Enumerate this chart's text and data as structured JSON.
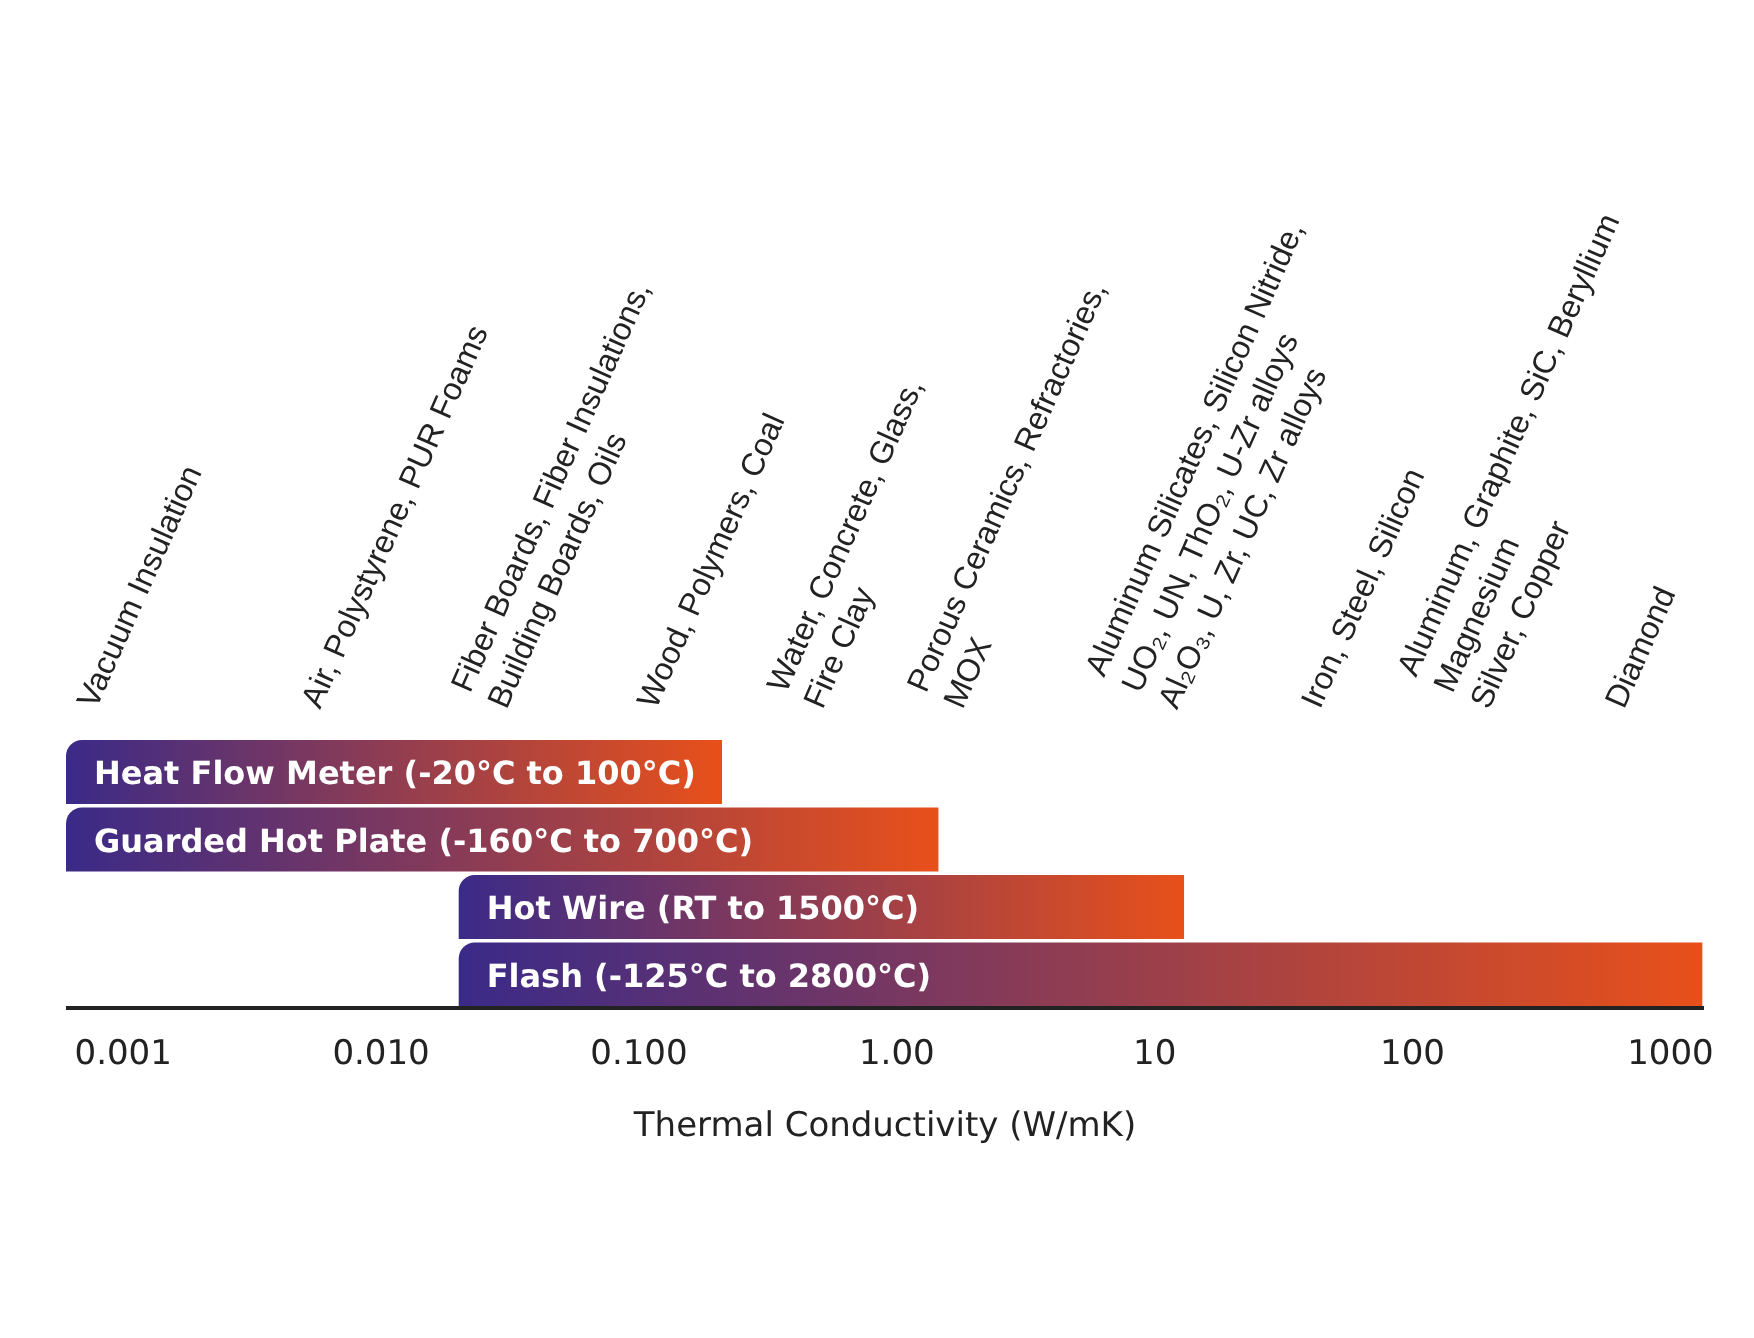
{
  "chart_data": {
    "type": "bar",
    "orientation": "horizontal",
    "xlabel": "Thermal Conductivity (W/mK)",
    "categories": [
      "Heat Flow Meter (-20°C to 100°C)",
      "Guarded Hot Plate (-160°C to 700°C)",
      "Hot Wire (RT to 1500°C)",
      "Flash (-125°C to 2800°C)"
    ],
    "base": [
      0.0006,
      0.0006,
      0.02,
      0.02
    ],
    "values": [
      0.2094,
      1.4494,
      12.98,
      1329.98
    ],
    "color": "#e8501a",
    "log": "x",
    "xlim": [
      0.0006,
      1350
    ],
    "xticks": [
      0.001,
      {
        "value": 0.01,
        "label": "0.010"
      },
      {
        "value": 0.1,
        "label": "0.100"
      },
      {
        "value": 1,
        "label": "1.00"
      },
      10,
      100,
      1000
    ],
    "grid": false,
    "legend": false,
    "tick_labels": "x",
    "annotations": [
      "Vacuum Insulation",
      "Air, Polystyrene, PUR Foams",
      "Fiber Boards, Fiber Insulations,\nBuilding Boards, Oils",
      "Wood, Polymers, Coal",
      "Water, Concrete, Glass,\nFire Clay",
      "Porous Ceramics, Refractories,\nMOX",
      "Aluminum Silicates, Silicon Nitride,\nUO₂, UN, ThO₂, U-Zr alloys\nAl₂O₃, U, Zr, UC, Zr alloys",
      "Iron, Steel, Silicon",
      "Aluminum, Graphite, SiC, Beryllium\nMagnesium\nSilver, Copper",
      "Diamond"
    ]
  }
}
